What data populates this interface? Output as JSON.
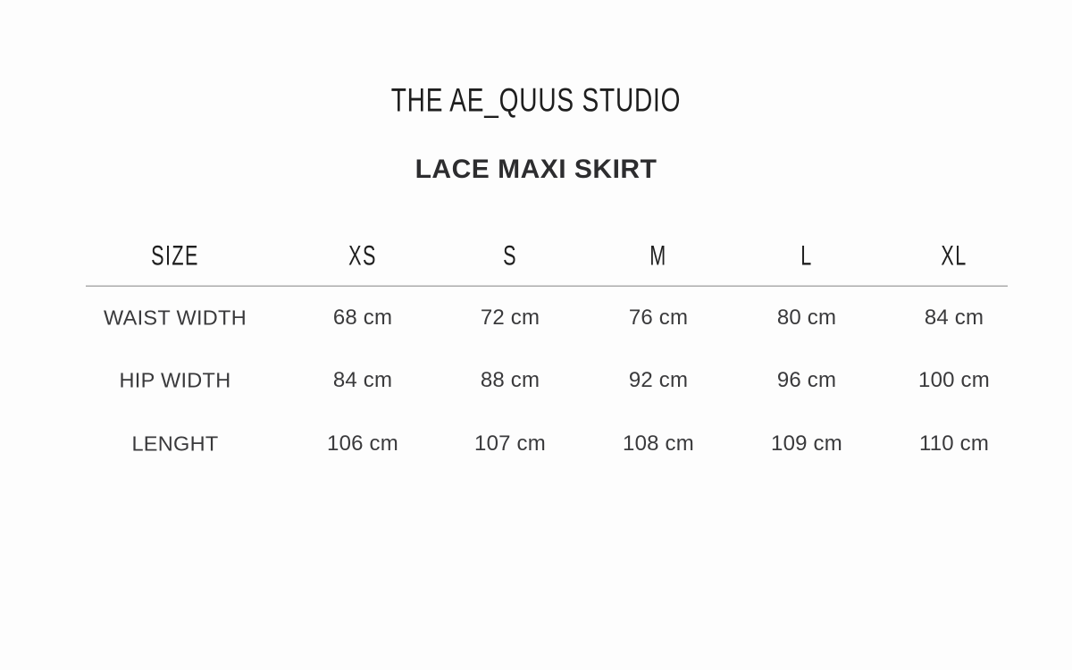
{
  "brand": "THE AE_QUUS STUDIO",
  "product_title": "LACE MAXI SKIRT",
  "size_chart": {
    "columns": [
      "SIZE",
      "XS",
      "S",
      "M",
      "L",
      "XL"
    ],
    "rows": [
      {
        "label": "WAIST WIDTH",
        "values": [
          "68 cm",
          "72 cm",
          "76 cm",
          "80 cm",
          "84 cm"
        ]
      },
      {
        "label": "HIP WIDTH",
        "values": [
          "84 cm",
          "88 cm",
          "92 cm",
          "96 cm",
          "100 cm"
        ]
      },
      {
        "label": "LENGHT",
        "values": [
          "106 cm",
          "107 cm",
          "108 cm",
          "109 cm",
          "110 cm"
        ]
      }
    ]
  },
  "colors": {
    "background": "#fdfdfd",
    "text_primary": "#3a3a3c",
    "text_heading": "#1e1e1e",
    "title": "#2d2d2f",
    "divider": "#aeaeae"
  }
}
